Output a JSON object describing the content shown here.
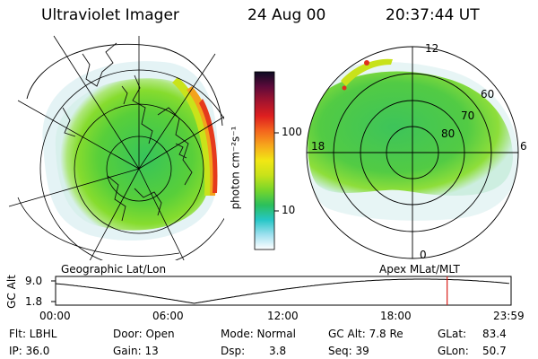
{
  "header": {
    "title": "Ultraviolet Imager",
    "date": "24 Aug 00",
    "time": "20:37:44 UT"
  },
  "colorbar": {
    "unit_label": "photon cm⁻²s⁻¹",
    "ticks": [
      "100",
      "10"
    ],
    "colors": [
      "#ffffff",
      "#9fe0ef",
      "#26c6c6",
      "#2bbf5c",
      "#77d62b",
      "#c7e21a",
      "#f1e714",
      "#f7a91c",
      "#f4661d",
      "#de1f1f",
      "#a5142e",
      "#5d0a3a",
      "#0b0b22"
    ]
  },
  "left_map": {
    "caption": "Geographic Lat/Lon"
  },
  "right_map": {
    "caption": "Apex MLat/MLT",
    "mlt_labels": {
      "top": "12",
      "left": "18",
      "right": "6",
      "bottom": "0"
    },
    "lat_labels": [
      "60",
      "70",
      "80"
    ]
  },
  "altitude_panel": {
    "ylabel": "GC Alt",
    "yticks": [
      "9.0",
      "1.8"
    ],
    "xticks": [
      "00:00",
      "06:00",
      "12:00",
      "18:00",
      "23:59"
    ],
    "current_marker_hour": 20.63
  },
  "info": {
    "filter": "Flt: LBHL",
    "door": "Door: Open",
    "mode": "Mode: Normal",
    "gc_alt": "GC Alt: 7.8 Re",
    "glat_label": "GLat:",
    "glat_value": "83.4",
    "ip": "IP: 36.0",
    "gain": "Gain: 13",
    "dsp_label": "Dsp:",
    "dsp_value": "3.8",
    "seq": "Seq: 39",
    "glon_label": "GLon:",
    "glon_value": "50.7"
  }
}
